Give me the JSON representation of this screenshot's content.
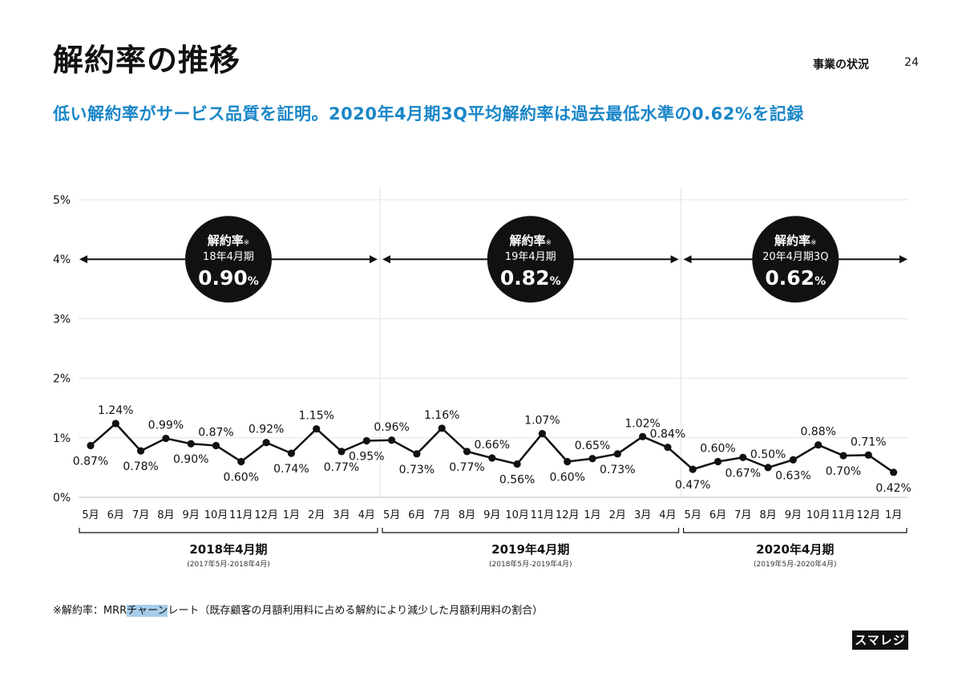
{
  "header": {
    "title": "解約率の推移",
    "section": "事業の状況",
    "page_number": "24"
  },
  "headline": "低い解約率がサービス品質を証明。2020年4月期3Q平均解約率は過去最低水準の0.62%を記録",
  "footnote": {
    "prefix": "※解約率：MRR",
    "highlight": "チャーン",
    "suffix": "レート（既存顧客の月額利用料に占める解約により減少した月額利用料の割合）"
  },
  "logo": "スマレジ",
  "colors": {
    "accent": "#1a86c8",
    "line": "#111111",
    "grid": "#e3e3e3",
    "footnote_highlight": "#a6cdea"
  },
  "chart_data": {
    "type": "line",
    "title": "",
    "ylim": [
      0,
      5
    ],
    "yticks": [
      "0%",
      "1%",
      "2%",
      "3%",
      "4%",
      "5%"
    ],
    "grid": true,
    "categories": [
      "5月",
      "6月",
      "7月",
      "8月",
      "9月",
      "10月",
      "11月",
      "12月",
      "1月",
      "2月",
      "3月",
      "4月",
      "5月",
      "6月",
      "7月",
      "8月",
      "9月",
      "10月",
      "11月",
      "12月",
      "1月",
      "2月",
      "3月",
      "4月",
      "5月",
      "6月",
      "7月",
      "8月",
      "9月",
      "10月",
      "11月",
      "12月",
      "1月"
    ],
    "series": [
      {
        "name": "",
        "values": [
          0.87,
          1.24,
          0.78,
          0.99,
          0.9,
          0.87,
          0.6,
          0.92,
          0.74,
          1.15,
          0.77,
          0.95,
          0.96,
          0.73,
          1.16,
          0.77,
          0.66,
          0.56,
          1.07,
          0.6,
          0.65,
          0.73,
          1.02,
          0.84,
          0.47,
          0.6,
          0.67,
          0.5,
          0.63,
          0.88,
          0.7,
          0.71,
          0.42
        ],
        "labels": [
          "0.87%",
          "1.24%",
          "0.78%",
          "0.99%",
          "0.90%",
          "0.87%",
          "0.60%",
          "0.92%",
          "0.74%",
          "1.15%",
          "0.77%",
          "0.95%",
          "0.96%",
          "0.73%",
          "1.16%",
          "0.77%",
          "0.66%",
          "0.56%",
          "1.07%",
          "0.60%",
          "0.65%",
          "0.73%",
          "1.02%",
          "0.84%",
          "0.47%",
          "0.60%",
          "0.67%",
          "0.50%",
          "0.63%",
          "0.88%",
          "0.70%",
          "0.71%",
          "0.42%"
        ],
        "label_pos": [
          "below",
          "above",
          "below",
          "above",
          "below",
          "above",
          "below",
          "above",
          "below",
          "above",
          "below",
          "below",
          "above",
          "below",
          "above",
          "below",
          "above",
          "below",
          "above",
          "below",
          "above",
          "below",
          "above",
          "above",
          "below",
          "above",
          "below",
          "above",
          "below",
          "above",
          "below",
          "above",
          "below"
        ]
      }
    ],
    "periods": [
      {
        "name": "2018年4月期",
        "range": "(2017年5月-2018年4月)",
        "start": 0,
        "end": 11,
        "badge_title": "解約率",
        "badge_mark": "※",
        "badge_sub": "18年4月期",
        "badge_value": "0.90",
        "badge_unit": "%"
      },
      {
        "name": "2019年4月期",
        "range": "(2018年5月-2019年4月)",
        "start": 12,
        "end": 23,
        "badge_title": "解約率",
        "badge_mark": "※",
        "badge_sub": "19年4月期",
        "badge_value": "0.82",
        "badge_unit": "%"
      },
      {
        "name": "2020年4月期",
        "range": "(2019年5月-2020年4月)",
        "start": 24,
        "end": 32,
        "badge_title": "解約率",
        "badge_mark": "※",
        "badge_sub": "20年4月期3Q",
        "badge_value": "0.62",
        "badge_unit": "%"
      }
    ]
  }
}
